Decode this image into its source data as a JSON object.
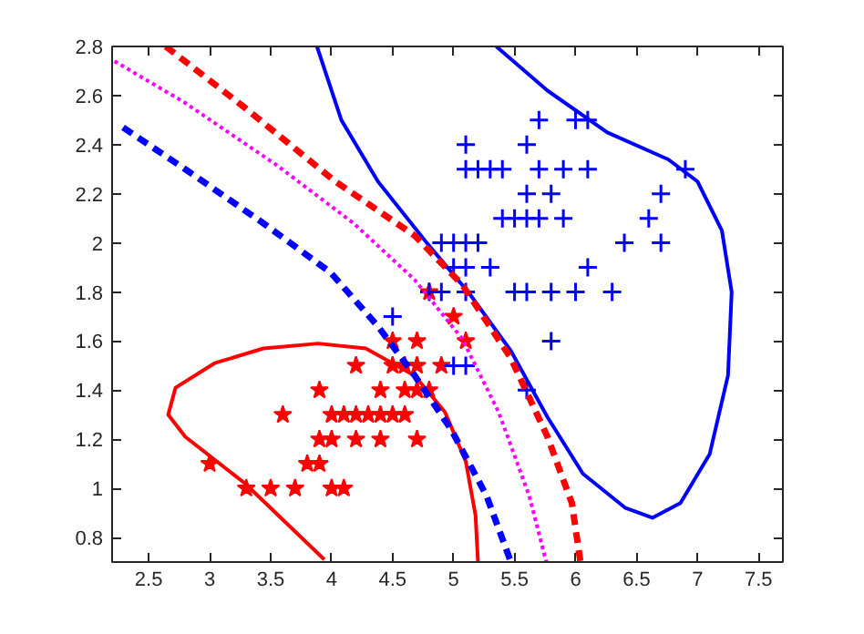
{
  "chart_data": {
    "type": "scatter",
    "xlim": [
      2.2,
      7.7
    ],
    "ylim": [
      0.7,
      2.8
    ],
    "xticks": [
      2.5,
      3,
      3.5,
      4,
      4.5,
      5,
      5.5,
      6,
      6.5,
      7,
      7.5
    ],
    "yticks": [
      0.8,
      1,
      1.2,
      1.4,
      1.6,
      1.8,
      2,
      2.2,
      2.4,
      2.6,
      2.8
    ],
    "grid": false,
    "series": [
      {
        "marker": "star",
        "color": "#ff0000",
        "x": [
          5.0,
          4.5,
          4.7,
          5.1,
          4.2,
          4.5,
          4.6,
          4.7,
          4.9,
          3.9,
          4.4,
          4.6,
          4.7,
          4.8,
          3.6,
          4.0,
          4.1,
          4.2,
          4.3,
          4.4,
          4.5,
          4.6,
          3.9,
          4.0,
          4.2,
          4.4,
          4.7,
          3.0,
          3.8,
          3.9,
          3.3,
          3.5,
          3.7,
          4.0,
          4.1,
          4.8
        ],
        "values": [
          1.7,
          1.6,
          1.6,
          1.6,
          1.5,
          1.5,
          1.5,
          1.5,
          1.5,
          1.4,
          1.4,
          1.4,
          1.4,
          1.4,
          1.3,
          1.3,
          1.3,
          1.3,
          1.3,
          1.3,
          1.3,
          1.3,
          1.2,
          1.2,
          1.2,
          1.2,
          1.2,
          1.1,
          1.1,
          1.1,
          1.0,
          1.0,
          1.0,
          1.0,
          1.0,
          1.8
        ]
      },
      {
        "marker": "cross",
        "color": "#0000ff",
        "x": [
          5.7,
          6.0,
          6.1,
          5.1,
          5.6,
          5.1,
          5.2,
          5.3,
          5.4,
          5.7,
          5.9,
          6.1,
          6.9,
          5.6,
          5.8,
          6.7,
          5.4,
          5.5,
          5.6,
          5.7,
          5.9,
          6.6,
          4.9,
          5.0,
          5.1,
          5.2,
          6.4,
          6.7,
          5.0,
          5.1,
          5.3,
          6.1,
          4.8,
          4.9,
          5.1,
          5.5,
          5.6,
          5.8,
          6.0,
          6.3,
          4.5,
          5.8,
          5.0,
          5.1,
          5.6
        ],
        "values": [
          2.5,
          2.5,
          2.5,
          2.4,
          2.4,
          2.3,
          2.3,
          2.3,
          2.3,
          2.3,
          2.3,
          2.3,
          2.3,
          2.2,
          2.2,
          2.2,
          2.1,
          2.1,
          2.1,
          2.1,
          2.1,
          2.1,
          2.0,
          2.0,
          2.0,
          2.0,
          2.0,
          2.0,
          1.9,
          1.9,
          1.9,
          1.9,
          1.8,
          1.8,
          1.8,
          1.8,
          1.8,
          1.8,
          1.8,
          1.8,
          1.7,
          1.6,
          1.5,
          1.5,
          1.4
        ]
      },
      {
        "type": "line",
        "line_style": "solid",
        "color": "#ff0000",
        "x": [
          3.94,
          3.29,
          2.8,
          2.66,
          2.72,
          3.04,
          3.44,
          3.89,
          4.28,
          4.68,
          4.93,
          5.1,
          5.18,
          5.2
        ],
        "values": [
          0.71,
          1.02,
          1.21,
          1.3,
          1.41,
          1.51,
          1.57,
          1.59,
          1.57,
          1.46,
          1.31,
          1.11,
          0.89,
          0.7
        ]
      },
      {
        "type": "line",
        "line_style": "solid",
        "color": "#0000ff",
        "x": [
          3.88,
          4.08,
          4.38,
          4.78,
          5.12,
          5.47,
          5.77,
          6.06,
          6.41,
          6.63,
          6.86,
          7.1,
          7.25,
          7.28,
          7.2,
          7.0,
          6.76,
          6.26,
          5.77,
          5.35
        ],
        "values": [
          2.8,
          2.5,
          2.25,
          2.0,
          1.8,
          1.56,
          1.29,
          1.06,
          0.92,
          0.88,
          0.94,
          1.14,
          1.46,
          1.8,
          2.05,
          2.25,
          2.34,
          2.45,
          2.62,
          2.8
        ]
      },
      {
        "type": "line",
        "line_style": "dashed",
        "color": "#ff0000",
        "x": [
          2.64,
          3.29,
          4.03,
          4.68,
          5.07,
          5.47,
          5.77,
          5.97,
          6.04
        ],
        "values": [
          2.8,
          2.55,
          2.25,
          2.03,
          1.83,
          1.53,
          1.21,
          0.94,
          0.7
        ]
      },
      {
        "type": "line",
        "line_style": "dotted",
        "color": "#ff00ff",
        "x": [
          2.22,
          2.8,
          3.54,
          4.18,
          4.68,
          5.07,
          5.37,
          5.62,
          5.76
        ],
        "values": [
          2.74,
          2.57,
          2.32,
          2.08,
          1.85,
          1.61,
          1.31,
          0.97,
          0.7
        ]
      },
      {
        "type": "line",
        "line_style": "dashed",
        "color": "#0000ff",
        "x": [
          2.29,
          2.8,
          3.44,
          3.99,
          4.38,
          4.68,
          4.98,
          5.27,
          5.47
        ],
        "values": [
          2.47,
          2.3,
          2.08,
          1.88,
          1.66,
          1.46,
          1.24,
          0.97,
          0.7
        ]
      }
    ]
  }
}
